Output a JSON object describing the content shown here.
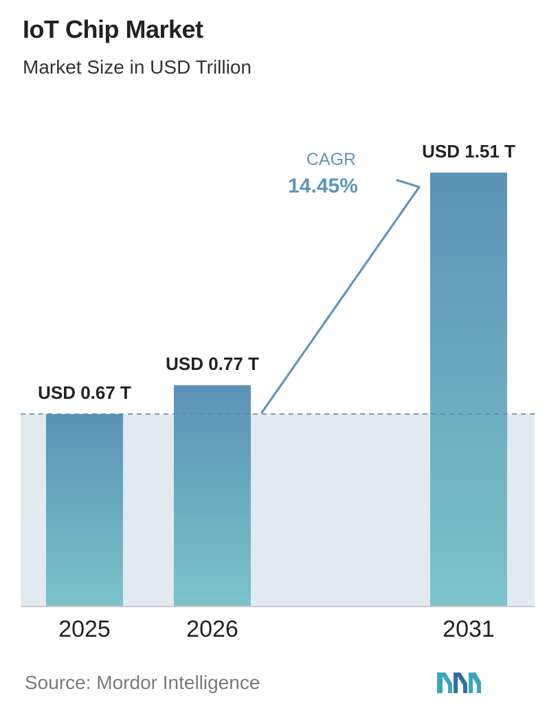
{
  "header": {
    "title": "IoT Chip Market",
    "subtitle": "Market Size in USD Trillion"
  },
  "cagr": {
    "label": "CAGR",
    "value": "14.45%"
  },
  "footer": {
    "source": "Source:  Mordor Intelligence"
  },
  "colors": {
    "bar_top": "#5b92b8",
    "bar_bottom": "#7dc3c8",
    "band": "#e1e9f1",
    "baseline": "#c8c8c8",
    "dashed_line": "#5b8aa9",
    "arrow": "#5f95bc",
    "cagr_text": "#5f95bc"
  },
  "chart_data": {
    "type": "bar",
    "title": "IoT Chip Market",
    "subtitle": "Market Size in USD Trillion",
    "categories": [
      "2025",
      "2026",
      "2031"
    ],
    "values": [
      0.67,
      0.77,
      1.51
    ],
    "data_labels": [
      "USD 0.67 T",
      "USD 0.77 T",
      "USD 1.51 T"
    ],
    "ylim": [
      0,
      1.51
    ],
    "grid": false,
    "legend": "none"
  }
}
